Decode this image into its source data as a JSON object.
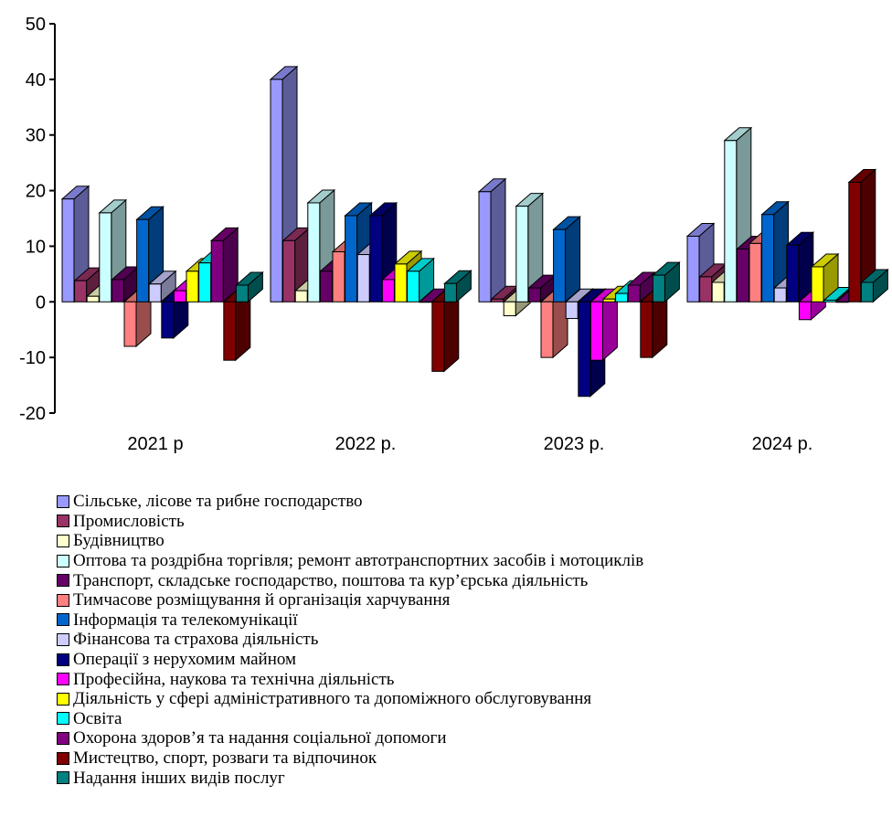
{
  "chart_data": {
    "type": "bar",
    "style": "3d-clustered-column",
    "categories": [
      "2021 р",
      "2022 р.",
      "2023 р.",
      "2024 р."
    ],
    "ylim": [
      -20,
      50
    ],
    "yticks": [
      -20,
      -10,
      0,
      10,
      20,
      30,
      40,
      50
    ],
    "grid": false,
    "legend_position": "bottom",
    "series": [
      {
        "name": "Сільське, лісове та рибне господарство",
        "color": "#9999ff",
        "values": [
          18.5,
          40.0,
          19.8,
          11.8
        ]
      },
      {
        "name": "Промисловість",
        "color": "#993366",
        "values": [
          3.8,
          11.0,
          0.5,
          4.5
        ]
      },
      {
        "name": "Будівництво",
        "color": "#ffffcc",
        "values": [
          1.0,
          2.0,
          -2.5,
          3.5
        ]
      },
      {
        "name": "Оптова та роздрібна торгівля; ремонт автотранспортних засобів і мотоциклів",
        "color": "#ccffff",
        "values": [
          16.0,
          17.8,
          17.2,
          29.0
        ]
      },
      {
        "name": "Транспорт, складське господарство, поштова та кур’єрська діяльність",
        "color": "#660066",
        "values": [
          4.0,
          5.5,
          2.5,
          9.5
        ]
      },
      {
        "name": "Тимчасове розміщування й організація харчування",
        "color": "#ff8080",
        "values": [
          -8.0,
          9.0,
          -10.0,
          10.5
        ]
      },
      {
        "name": "Інформація та телекомунікації",
        "color": "#0066cc",
        "values": [
          14.8,
          15.5,
          13.0,
          15.7
        ]
      },
      {
        "name": "Фінансова та страхова діяльність",
        "color": "#ccccff",
        "values": [
          3.2,
          8.5,
          -3.0,
          2.5
        ]
      },
      {
        "name": "Операції з нерухомим майном",
        "color": "#000080",
        "values": [
          -6.5,
          15.5,
          -17.0,
          10.2
        ]
      },
      {
        "name": "Професійна, наукова та технічна діяльність",
        "color": "#ff00ff",
        "values": [
          2.0,
          4.0,
          -10.5,
          -3.2
        ]
      },
      {
        "name": "Діяльність у сфері адміністративного та допоміжного обслуговування",
        "color": "#ffff00",
        "values": [
          5.5,
          6.8,
          0.5,
          6.3
        ]
      },
      {
        "name": "Освіта",
        "color": "#00ffff",
        "values": [
          7.0,
          5.5,
          1.5,
          0.3
        ]
      },
      {
        "name": "Охорона здоров’я та надання соціальної допомоги",
        "color": "#800080",
        "values": [
          11.0,
          0.0,
          3.0,
          0.0
        ]
      },
      {
        "name": "Мистецтво, спорт, розваги та відпочинок",
        "color": "#800000",
        "values": [
          -10.5,
          -12.5,
          -10.0,
          21.5
        ]
      },
      {
        "name": "Надання інших видів послуг",
        "color": "#008080",
        "values": [
          3.0,
          3.3,
          4.8,
          3.5
        ]
      }
    ]
  }
}
